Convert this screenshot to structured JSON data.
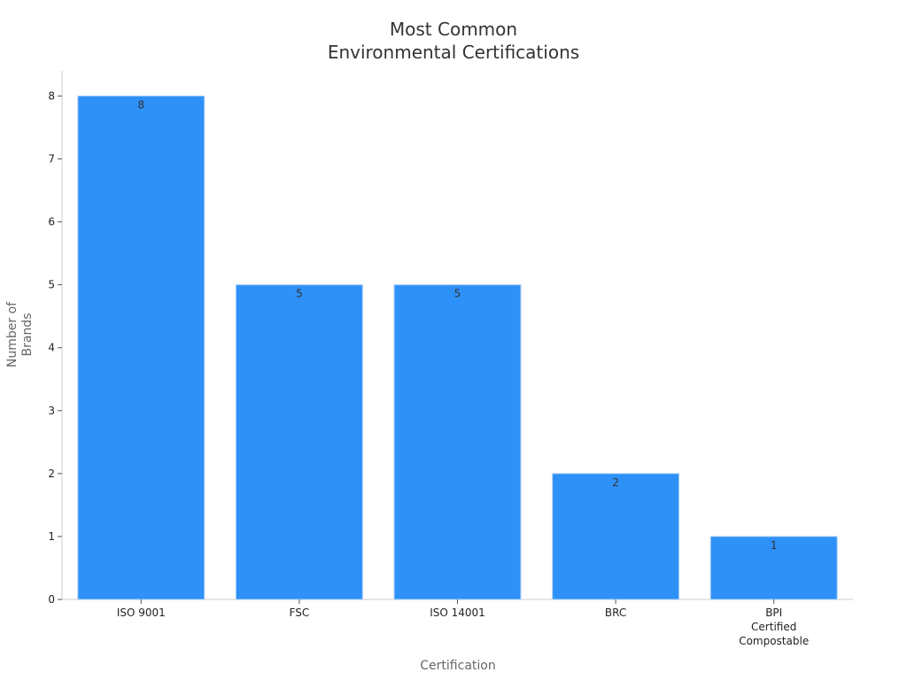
{
  "chart_data": {
    "type": "bar",
    "title_lines": [
      "Most Common",
      "Environmental Certifications"
    ],
    "xlabel": "Certification",
    "ylabel_lines": [
      "Number of",
      "Brands"
    ],
    "categories": [
      [
        "ISO 9001"
      ],
      [
        "FSC"
      ],
      [
        "ISO 14001"
      ],
      [
        "BRC"
      ],
      [
        "BPI",
        "Certified",
        "Compostable"
      ]
    ],
    "values": [
      8,
      5,
      5,
      2,
      1
    ],
    "data_labels": [
      "8",
      "5",
      "5",
      "2",
      "1"
    ],
    "ylim": [
      0,
      8.4
    ],
    "yticks": [
      0,
      1,
      2,
      3,
      4,
      5,
      6,
      7,
      8
    ],
    "grid": false,
    "legend": "none",
    "bar_color": "#2e91f8",
    "bar_edge_color": "#a9cdf5",
    "axis_color": "#cccccc"
  }
}
